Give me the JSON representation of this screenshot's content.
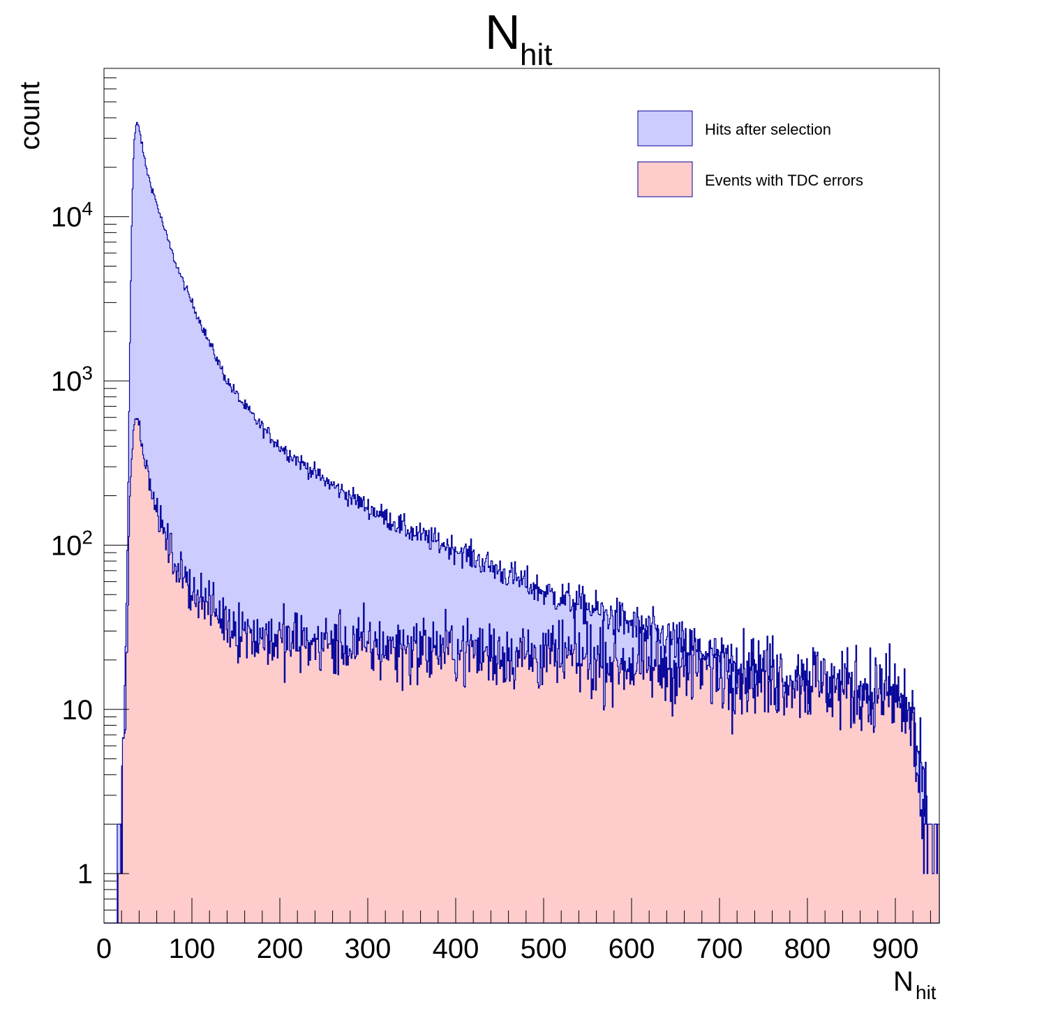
{
  "chart_data": {
    "type": "histogram",
    "title": {
      "main": "N",
      "sub": "hit"
    },
    "xlabel": {
      "main": "N",
      "sub": "hit"
    },
    "ylabel": "count",
    "xlim": [
      0,
      950
    ],
    "ylim": [
      0.5,
      80000
    ],
    "yscale": "log",
    "x_ticks": [
      "0",
      "100",
      "200",
      "300",
      "400",
      "500",
      "600",
      "700",
      "800",
      "900"
    ],
    "y_ticks": [
      {
        "value": 1,
        "label": "1",
        "exp": ""
      },
      {
        "value": 10,
        "label": "10",
        "exp": ""
      },
      {
        "value": 100,
        "label": "10",
        "exp": "2"
      },
      {
        "value": 1000,
        "label": "10",
        "exp": "3"
      },
      {
        "value": 10000,
        "label": "10",
        "exp": "4"
      }
    ],
    "legend_position": "top-right",
    "series": [
      {
        "name": "Hits after selection",
        "fill": "#ccccff",
        "line": "#000099",
        "points": [
          [
            0,
            0
          ],
          [
            15,
            0
          ],
          [
            18,
            1
          ],
          [
            20,
            3
          ],
          [
            22,
            6
          ],
          [
            24,
            15
          ],
          [
            26,
            60
          ],
          [
            28,
            400
          ],
          [
            30,
            3000
          ],
          [
            32,
            12000
          ],
          [
            34,
            28000
          ],
          [
            37,
            37000
          ],
          [
            40,
            35000
          ],
          [
            45,
            24000
          ],
          [
            50,
            18000
          ],
          [
            60,
            12000
          ],
          [
            70,
            8000
          ],
          [
            80,
            5500
          ],
          [
            90,
            4000
          ],
          [
            100,
            3000
          ],
          [
            120,
            1700
          ],
          [
            140,
            1000
          ],
          [
            160,
            700
          ],
          [
            180,
            520
          ],
          [
            200,
            400
          ],
          [
            250,
            250
          ],
          [
            300,
            170
          ],
          [
            350,
            120
          ],
          [
            400,
            95
          ],
          [
            450,
            70
          ],
          [
            500,
            52
          ],
          [
            550,
            42
          ],
          [
            600,
            33
          ],
          [
            650,
            26
          ],
          [
            700,
            20
          ],
          [
            750,
            16
          ],
          [
            800,
            13
          ],
          [
            850,
            11
          ],
          [
            900,
            10
          ],
          [
            920,
            8
          ],
          [
            930,
            4
          ],
          [
            938,
            2
          ],
          [
            945,
            1
          ],
          [
            950,
            0
          ]
        ],
        "noise": 0.45
      },
      {
        "name": "Events with TDC errors",
        "fill": "#ffcccc",
        "line": "#000099",
        "points": [
          [
            0,
            0
          ],
          [
            16,
            0
          ],
          [
            18,
            1
          ],
          [
            20,
            2
          ],
          [
            22,
            4
          ],
          [
            24,
            8
          ],
          [
            26,
            20
          ],
          [
            28,
            80
          ],
          [
            30,
            250
          ],
          [
            33,
            500
          ],
          [
            36,
            620
          ],
          [
            40,
            540
          ],
          [
            45,
            380
          ],
          [
            50,
            260
          ],
          [
            60,
            160
          ],
          [
            70,
            110
          ],
          [
            80,
            80
          ],
          [
            90,
            62
          ],
          [
            100,
            55
          ],
          [
            120,
            42
          ],
          [
            140,
            34
          ],
          [
            160,
            30
          ],
          [
            200,
            26
          ],
          [
            300,
            24
          ],
          [
            400,
            23
          ],
          [
            500,
            21
          ],
          [
            600,
            19
          ],
          [
            700,
            17
          ],
          [
            800,
            15
          ],
          [
            900,
            12
          ],
          [
            920,
            8
          ],
          [
            928,
            3
          ],
          [
            935,
            1
          ],
          [
            950,
            0
          ]
        ],
        "noise": 0.7
      }
    ]
  }
}
